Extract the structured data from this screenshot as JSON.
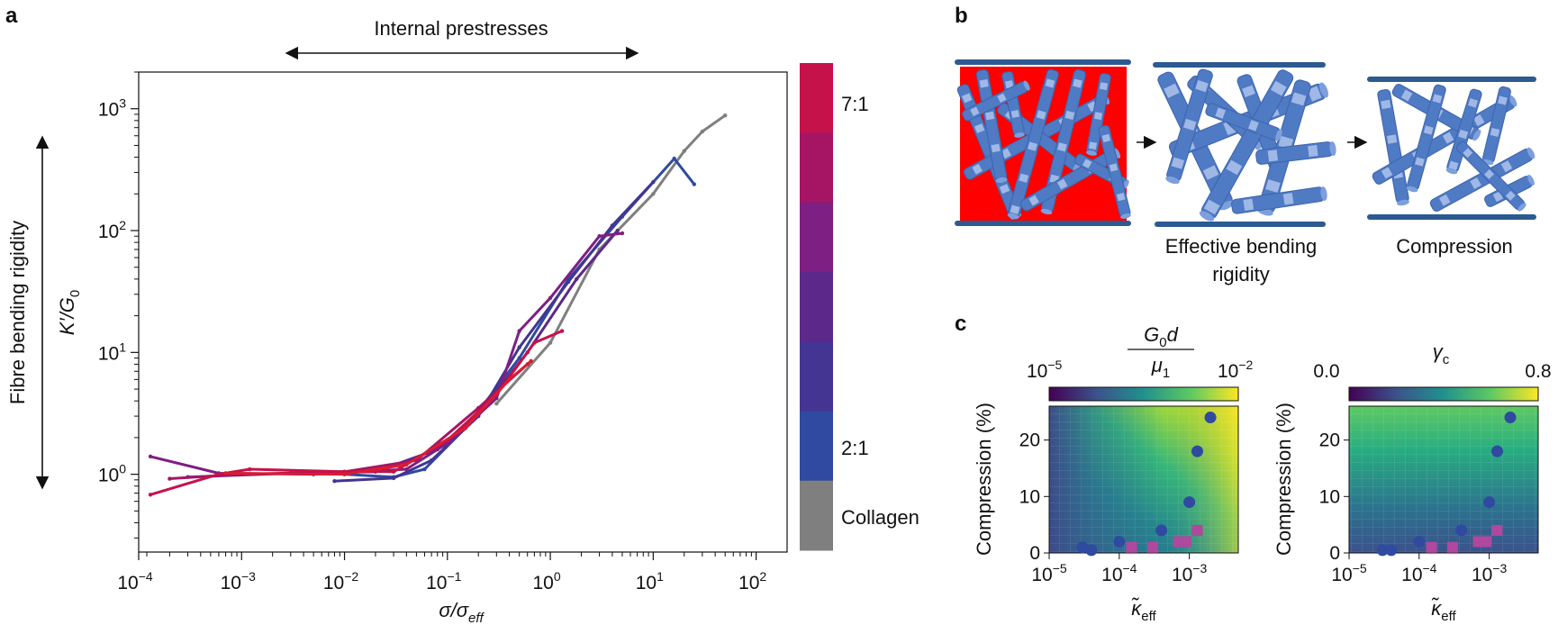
{
  "panel_a": {
    "panel_letter": "a",
    "header_text": "Internal prestresses",
    "left_arrow_label": "Fibre bending rigidity",
    "ylabel": "K′/G0",
    "ylabel_main": "K′/G",
    "ylabel_sub": "0",
    "xlabel_main": "σ/σ",
    "xlabel_sub": "eff",
    "colorbar": {
      "top_label": "7:1",
      "mid_label": "2:1",
      "bottom_label": "Collagen",
      "colors": [
        "#c5124a",
        "#a61564",
        "#7e1f84",
        "#5c2889",
        "#433591",
        "#2f4aa0",
        "#7f7f7f"
      ]
    },
    "x_ticks": [
      {
        "base": "10",
        "exp": "−4"
      },
      {
        "base": "10",
        "exp": "−3"
      },
      {
        "base": "10",
        "exp": "−2"
      },
      {
        "base": "10",
        "exp": "−1"
      },
      {
        "base": "10",
        "exp": "0"
      },
      {
        "base": "10",
        "exp": "1"
      },
      {
        "base": "10",
        "exp": "2"
      }
    ],
    "y_ticks": [
      {
        "base": "10",
        "exp": "0"
      },
      {
        "base": "10",
        "exp": "1"
      },
      {
        "base": "10",
        "exp": "2"
      },
      {
        "base": "10",
        "exp": "3"
      }
    ]
  },
  "panel_b": {
    "panel_letter": "b",
    "label_mid_line1": "Effective bending",
    "label_mid_line2": "rigidity",
    "label_right": "Compression",
    "colors": {
      "plate": "#2c5a91",
      "fibre": "#4f7ac4",
      "fibre_light": "#9fb8e6",
      "fill": "#ff0000"
    }
  },
  "panel_c": {
    "panel_letter": "c",
    "left": {
      "cbar_title_num_main": "G",
      "cbar_title_num_sub": "0",
      "cbar_title_num_tail": "d",
      "cbar_title_den_main": "μ",
      "cbar_title_den_sub": "1",
      "cbar_min": {
        "base": "10",
        "exp": "−5"
      },
      "cbar_max": {
        "base": "10",
        "exp": "−2"
      },
      "ylabel": "Compression (%)",
      "xlabel_main": "κ̃",
      "xlabel_sub": "eff",
      "y_ticks": [
        "20",
        "10",
        "0"
      ],
      "x_ticks": [
        {
          "base": "10",
          "exp": "−5"
        },
        {
          "base": "10",
          "exp": "−4"
        },
        {
          "base": "10",
          "exp": "−3"
        }
      ]
    },
    "right": {
      "cbar_title_main": "γ",
      "cbar_title_sub": "c",
      "cbar_min": "0.0",
      "cbar_max": "0.8",
      "ylabel": "Compression (%)",
      "xlabel_main": "κ̃",
      "xlabel_sub": "eff",
      "y_ticks": [
        "20",
        "10",
        "0"
      ],
      "x_ticks": [
        {
          "base": "10",
          "exp": "−5"
        },
        {
          "base": "10",
          "exp": "−4"
        },
        {
          "base": "10",
          "exp": "−3"
        }
      ]
    },
    "marker_colors": {
      "circle": "#2f4aa0",
      "square": "#b0489e"
    }
  },
  "chart_data": [
    {
      "type": "line",
      "panel": "a",
      "xlabel": "σ/σeff",
      "ylabel": "K′/G0",
      "xscale": "log",
      "yscale": "log",
      "xlim": [
        0.0001,
        200
      ],
      "ylim": [
        0.23,
        2000
      ],
      "series": [
        {
          "color": "#7f7f7f",
          "points": [
            [
              0.3,
              3.8
            ],
            [
              1,
              12
            ],
            [
              3,
              70
            ],
            [
              10,
              200
            ],
            [
              20,
              450
            ],
            [
              30,
              650
            ],
            [
              50,
              880
            ]
          ]
        },
        {
          "color": "#2f4aa0",
          "points": [
            [
              0.01,
              1.0
            ],
            [
              0.03,
              0.95
            ],
            [
              0.06,
              1.1
            ],
            [
              0.15,
              2.4
            ],
            [
              0.5,
              9
            ],
            [
              1.5,
              40
            ],
            [
              5,
              130
            ],
            [
              16,
              390
            ],
            [
              25,
              240
            ]
          ]
        },
        {
          "color": "#433591",
          "points": [
            [
              0.008,
              0.88
            ],
            [
              0.03,
              0.93
            ],
            [
              0.07,
              1.3
            ],
            [
              0.2,
              3
            ],
            [
              0.5,
              11
            ],
            [
              1.5,
              38
            ],
            [
              4,
              110
            ],
            [
              10,
              250
            ]
          ]
        },
        {
          "color": "#5c2889",
          "points": [
            [
              0.0003,
              0.95
            ],
            [
              0.003,
              1.02
            ],
            [
              0.02,
              1.05
            ],
            [
              0.08,
              1.6
            ],
            [
              0.2,
              3.1
            ],
            [
              0.6,
              10
            ],
            [
              1.8,
              40
            ],
            [
              4.5,
              100
            ]
          ]
        },
        {
          "color": "#7e1f84",
          "points": [
            [
              0.00013,
              1.4
            ],
            [
              0.0006,
              1.02
            ],
            [
              0.005,
              1.0
            ],
            [
              0.04,
              1.1
            ],
            [
              0.1,
              1.8
            ],
            [
              0.3,
              4.2
            ],
            [
              0.5,
              15
            ],
            [
              1,
              28
            ],
            [
              3,
              90
            ],
            [
              5,
              95
            ]
          ]
        },
        {
          "color": "#a61564",
          "points": [
            [
              0.0002,
              0.92
            ],
            [
              0.001,
              1.0
            ],
            [
              0.01,
              1.05
            ],
            [
              0.05,
              1.3
            ],
            [
              0.2,
              3.5
            ],
            [
              0.6,
              8
            ]
          ]
        },
        {
          "color": "#c5124a",
          "points": [
            [
              0.00013,
              0.68
            ],
            [
              0.0006,
              1.0
            ],
            [
              0.0012,
              1.1
            ],
            [
              0.01,
              1.05
            ],
            [
              0.03,
              1.05
            ],
            [
              0.1,
              1.9
            ],
            [
              0.3,
              4.5
            ],
            [
              0.7,
              12
            ],
            [
              1.3,
              15
            ]
          ]
        },
        {
          "color": "#dc1b2f",
          "points": [
            [
              0.0007,
              1.02
            ],
            [
              0.01,
              1.0
            ],
            [
              0.04,
              1.2
            ],
            [
              0.15,
              2.4
            ],
            [
              0.4,
              6
            ],
            [
              0.65,
              8.5
            ]
          ]
        }
      ]
    },
    {
      "type": "heatmap",
      "panel": "c-left",
      "xlabel": "κ̃eff",
      "ylabel": "Compression (%)",
      "xscale": "log",
      "xlim": [
        1e-05,
        0.005
      ],
      "ylim": [
        0,
        26
      ],
      "colorbar": {
        "label": "G0d/μ1",
        "scale": "log",
        "range": [
          1e-05,
          0.01
        ]
      },
      "circles": [
        [
          3e-05,
          1
        ],
        [
          4e-05,
          0.5
        ],
        [
          0.0001,
          2
        ],
        [
          0.0004,
          4
        ],
        [
          0.001,
          9
        ],
        [
          0.0013,
          18
        ],
        [
          0.002,
          24
        ]
      ],
      "squares": [
        [
          0.00015,
          1
        ],
        [
          0.0003,
          1
        ],
        [
          0.0007,
          2
        ],
        [
          0.0009,
          2
        ],
        [
          0.0013,
          4
        ]
      ]
    },
    {
      "type": "heatmap",
      "panel": "c-right",
      "xlabel": "κ̃eff",
      "ylabel": "Compression (%)",
      "xscale": "log",
      "xlim": [
        1e-05,
        0.005
      ],
      "ylim": [
        0,
        26
      ],
      "colorbar": {
        "label": "γc",
        "scale": "linear",
        "range": [
          0.0,
          0.8
        ]
      },
      "circles": [
        [
          3e-05,
          0.5
        ],
        [
          4e-05,
          0.5
        ],
        [
          0.0001,
          2
        ],
        [
          0.0004,
          4
        ],
        [
          0.001,
          9
        ],
        [
          0.0013,
          18
        ],
        [
          0.002,
          24
        ]
      ],
      "squares": [
        [
          0.00015,
          1
        ],
        [
          0.0003,
          1
        ],
        [
          0.0007,
          2
        ],
        [
          0.0009,
          2
        ],
        [
          0.0013,
          4
        ]
      ]
    }
  ]
}
